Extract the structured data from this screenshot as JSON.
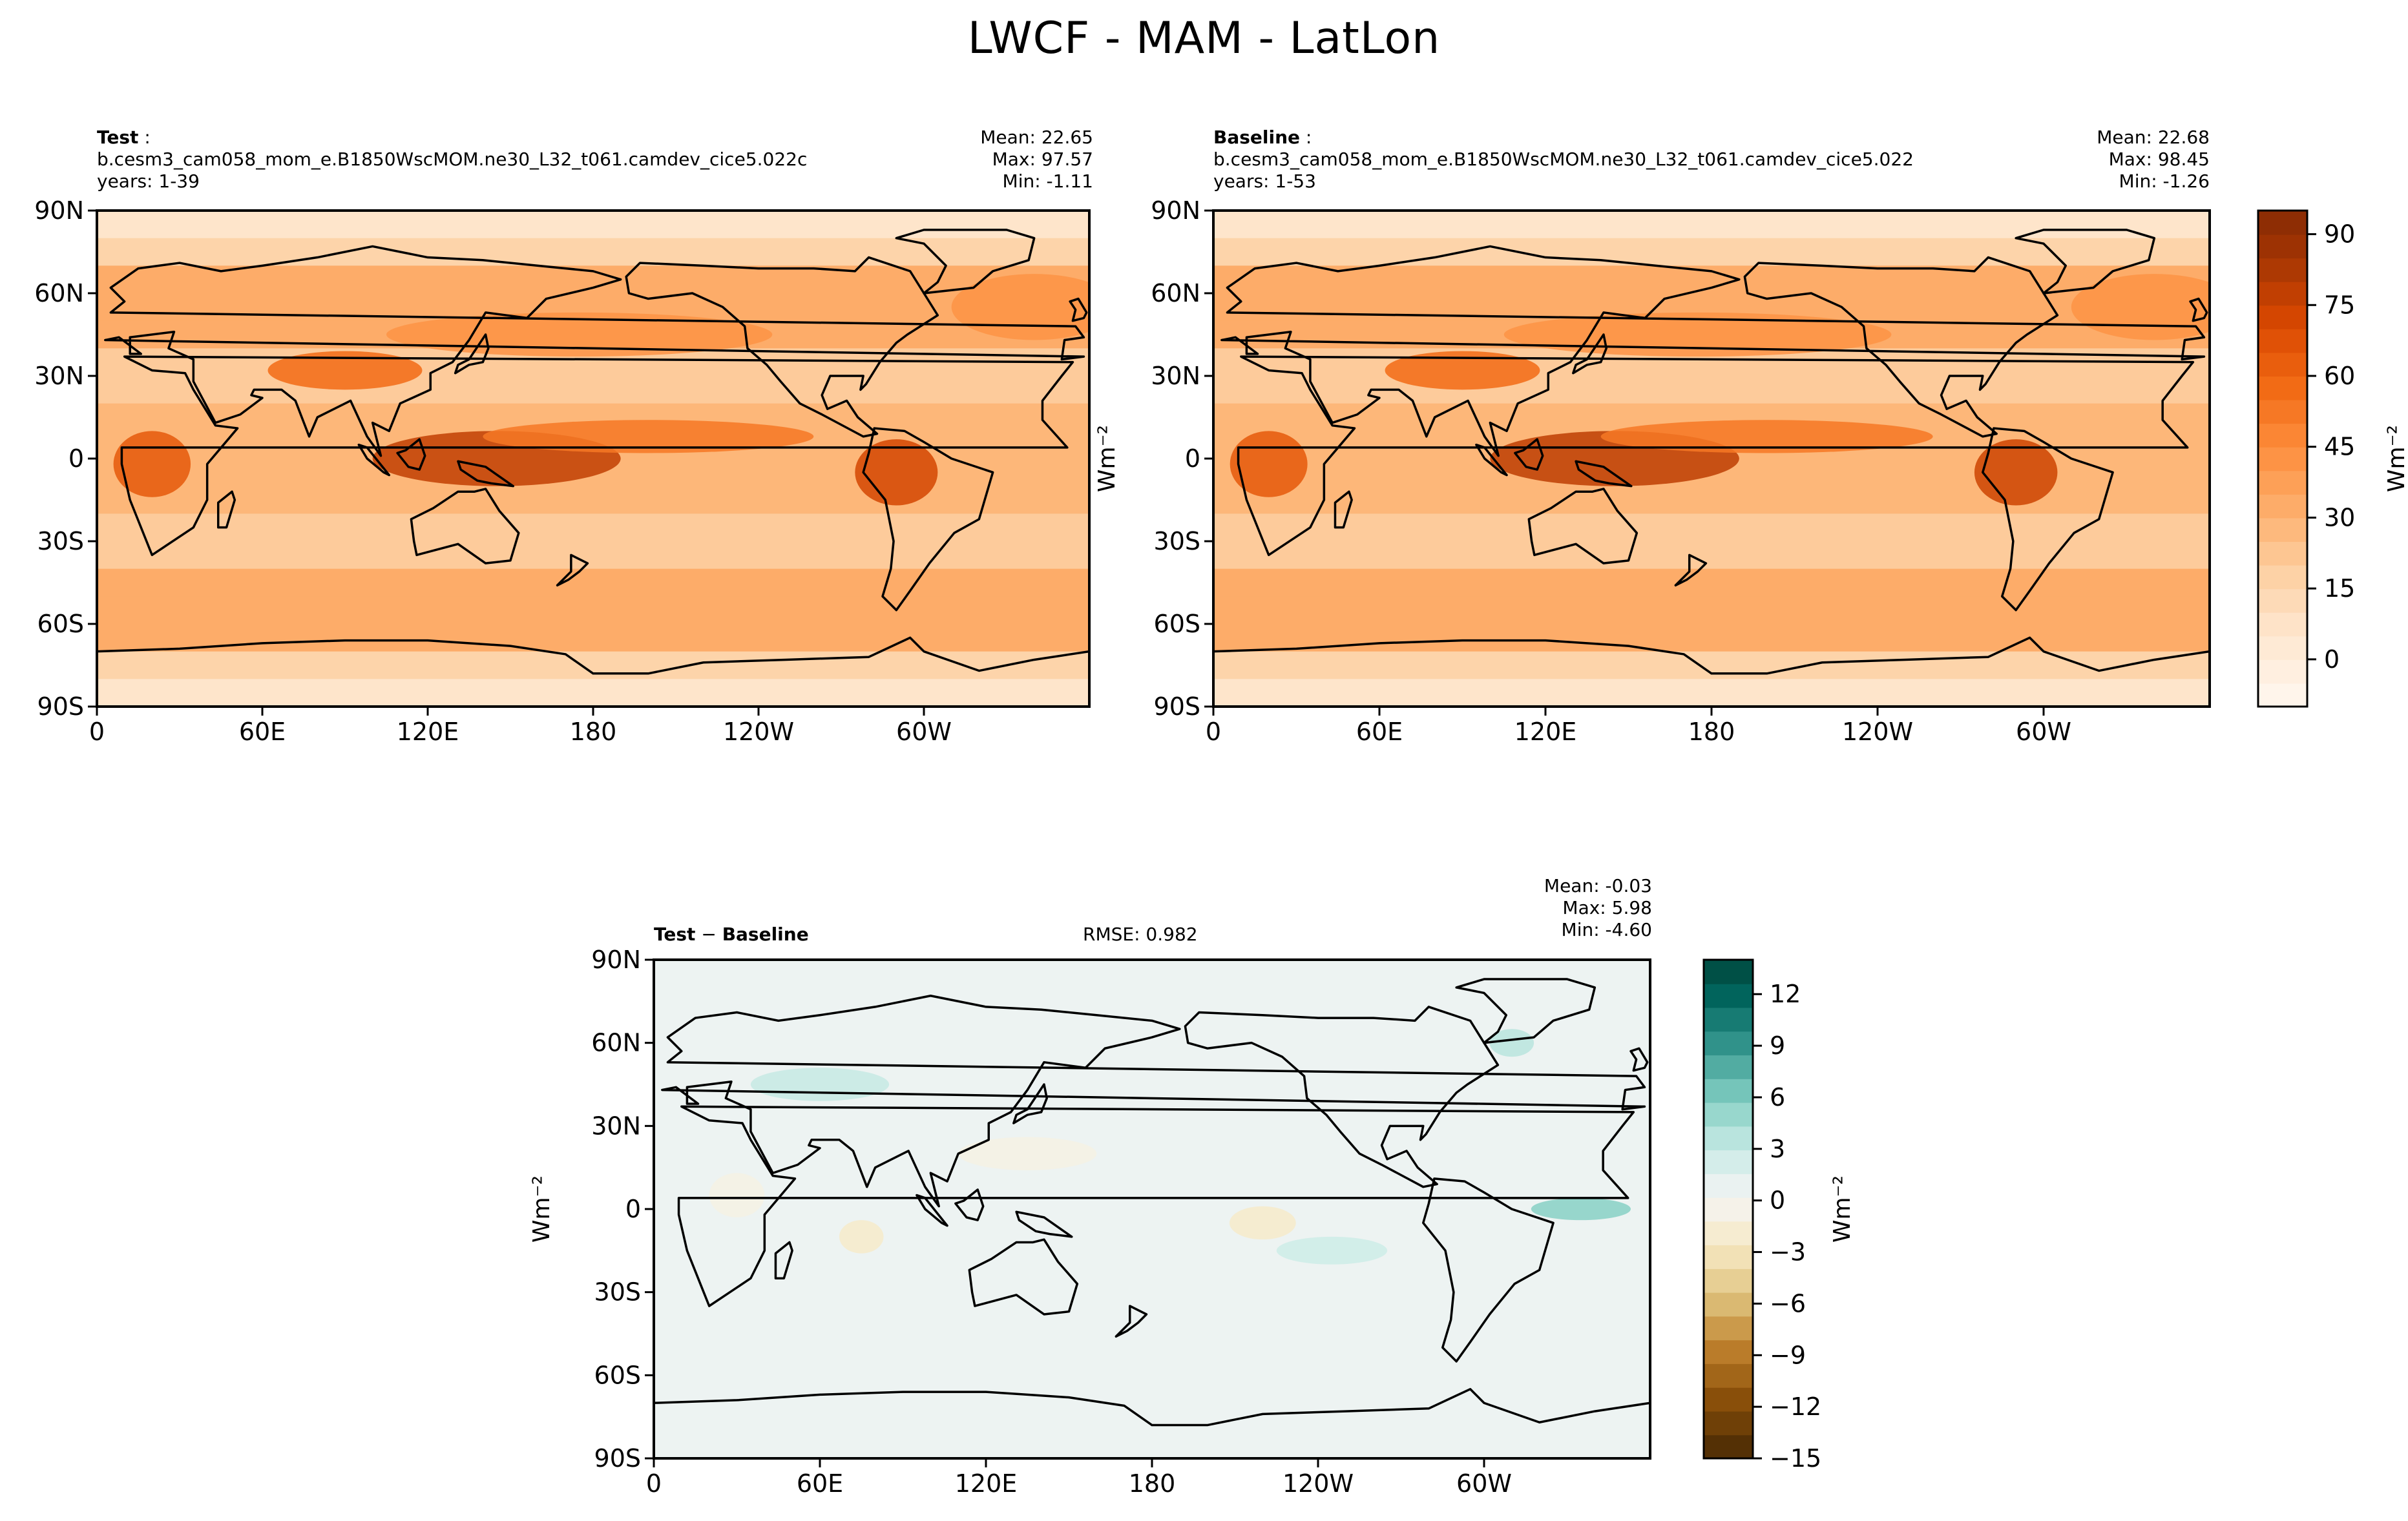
{
  "title": "LWCF - MAM - LatLon",
  "panels": {
    "test": {
      "label": "Test",
      "case": "b.cesm3_cam058_mom_e.B1850WscMOM.ne30_L32_t061.camdev_cice5.022c",
      "years": "years: 1-39",
      "mean": "Mean: 22.65",
      "max": "Max: 97.57",
      "min": "Min: -1.11"
    },
    "baseline": {
      "label": "Baseline",
      "case": "b.cesm3_cam058_mom_e.B1850WscMOM.ne30_L32_t061.camdev_cice5.022",
      "years": "years: 1-53",
      "mean": "Mean: 22.68",
      "max": "Max: 98.45",
      "min": "Min: -1.26"
    },
    "diff": {
      "label_a": "Test",
      "label_op": " − ",
      "label_b": "Baseline",
      "rmse": "RMSE: 0.982",
      "mean": "Mean: -0.03",
      "max": "Max:  5.98",
      "min": "Min: -4.60"
    }
  },
  "chart_data": [
    {
      "type": "heatmap",
      "name": "Test",
      "projection": "lat-lon",
      "xticks": [
        "0",
        "60E",
        "120E",
        "180",
        "120W",
        "60W"
      ],
      "xtick_lon": [
        0,
        60,
        120,
        180,
        240,
        300
      ],
      "xlim": [
        0,
        360
      ],
      "yticks": [
        "90N",
        "60N",
        "30N",
        "0",
        "30S",
        "60S",
        "90S"
      ],
      "ytick_lat": [
        90,
        60,
        30,
        0,
        -30,
        -60,
        -90
      ],
      "ylim": [
        -90,
        90
      ],
      "ylabel": "Wm⁻²",
      "colormap": "Oranges",
      "features": [
        {
          "lon": 145,
          "lat": 0,
          "value": 75,
          "sx": 45,
          "sy": 10
        },
        {
          "lon": 290,
          "lat": -5,
          "value": 70,
          "sx": 15,
          "sy": 12
        },
        {
          "lon": 20,
          "lat": -2,
          "value": 62,
          "sx": 14,
          "sy": 12
        },
        {
          "lon": 200,
          "lat": 8,
          "value": 50,
          "sx": 60,
          "sy": 6
        },
        {
          "lon": 90,
          "lat": 32,
          "value": 55,
          "sx": 28,
          "sy": 7
        },
        {
          "lon": 175,
          "lat": 45,
          "value": 40,
          "sx": 70,
          "sy": 8
        },
        {
          "lon": 340,
          "lat": 55,
          "value": 40,
          "sx": 30,
          "sy": 12
        }
      ]
    },
    {
      "type": "heatmap",
      "name": "Baseline",
      "projection": "lat-lon",
      "xticks": [
        "0",
        "60E",
        "120E",
        "180",
        "120W",
        "60W"
      ],
      "xtick_lon": [
        0,
        60,
        120,
        180,
        240,
        300
      ],
      "xlim": [
        0,
        360
      ],
      "yticks": [
        "90N",
        "60N",
        "30N",
        "0",
        "30S",
        "60S",
        "90S"
      ],
      "ytick_lat": [
        90,
        60,
        30,
        0,
        -30,
        -60,
        -90
      ],
      "ylim": [
        -90,
        90
      ],
      "colormap": "Oranges",
      "colorbar": {
        "label": "Wm⁻²",
        "ticks": [
          "90",
          "75",
          "60",
          "45",
          "30",
          "15",
          "0"
        ],
        "tick_values": [
          90,
          75,
          60,
          45,
          30,
          15,
          0
        ],
        "range": [
          -10,
          95
        ]
      },
      "features": [
        {
          "lon": 145,
          "lat": 0,
          "value": 76,
          "sx": 45,
          "sy": 10
        },
        {
          "lon": 290,
          "lat": -5,
          "value": 72,
          "sx": 15,
          "sy": 12
        },
        {
          "lon": 20,
          "lat": -2,
          "value": 62,
          "sx": 14,
          "sy": 12
        },
        {
          "lon": 200,
          "lat": 8,
          "value": 50,
          "sx": 60,
          "sy": 6
        },
        {
          "lon": 90,
          "lat": 32,
          "value": 55,
          "sx": 28,
          "sy": 7
        },
        {
          "lon": 175,
          "lat": 45,
          "value": 40,
          "sx": 70,
          "sy": 8
        },
        {
          "lon": 340,
          "lat": 55,
          "value": 40,
          "sx": 30,
          "sy": 12
        }
      ]
    },
    {
      "type": "heatmap",
      "name": "Test - Baseline",
      "projection": "lat-lon",
      "xticks": [
        "0",
        "60E",
        "120E",
        "180",
        "120W",
        "60W"
      ],
      "xtick_lon": [
        0,
        60,
        120,
        180,
        240,
        300
      ],
      "xlim": [
        0,
        360
      ],
      "yticks": [
        "90N",
        "60N",
        "30N",
        "0",
        "30S",
        "60S",
        "90S"
      ],
      "ytick_lat": [
        90,
        60,
        30,
        0,
        -30,
        -60,
        -90
      ],
      "ylim": [
        -90,
        90
      ],
      "ylabel": "Wm⁻²",
      "colormap": "BrBG",
      "colorbar": {
        "label": "Wm⁻²",
        "ticks": [
          "12",
          "9",
          "6",
          "3",
          "0",
          "−3",
          "−6",
          "−9",
          "−12",
          "−15"
        ],
        "tick_values": [
          12,
          9,
          6,
          3,
          0,
          -3,
          -6,
          -9,
          -12,
          -15
        ],
        "range": [
          -15,
          14
        ]
      },
      "features": [
        {
          "lon": 335,
          "lat": 0,
          "value": 5,
          "sx": 18,
          "sy": 4
        },
        {
          "lon": 310,
          "lat": 60,
          "value": 3,
          "sx": 8,
          "sy": 5
        },
        {
          "lon": 60,
          "lat": 45,
          "value": 2.5,
          "sx": 25,
          "sy": 6
        },
        {
          "lon": 220,
          "lat": -5,
          "value": -3,
          "sx": 12,
          "sy": 6
        },
        {
          "lon": 75,
          "lat": -10,
          "value": -3,
          "sx": 8,
          "sy": 6
        },
        {
          "lon": 30,
          "lat": 5,
          "value": -1.5,
          "sx": 10,
          "sy": 8
        },
        {
          "lon": 135,
          "lat": 20,
          "value": -1.5,
          "sx": 25,
          "sy": 6
        },
        {
          "lon": 245,
          "lat": -15,
          "value": 2,
          "sx": 20,
          "sy": 5
        }
      ]
    }
  ]
}
